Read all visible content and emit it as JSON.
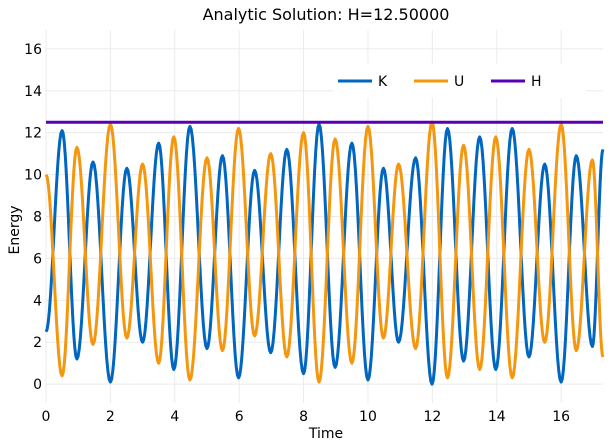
{
  "chart_data": {
    "type": "line",
    "title": "Analytic Solution: H=12.50000",
    "xlabel": "Time",
    "ylabel": "Energy",
    "xlim": [
      0,
      17.3
    ],
    "ylim": [
      -0.9,
      16.9
    ],
    "xticks": [
      0,
      2,
      4,
      6,
      8,
      10,
      12,
      14,
      16
    ],
    "yticks": [
      0,
      2,
      4,
      6,
      8,
      10,
      12,
      14,
      16
    ],
    "grid": true,
    "legend_position": "top-right",
    "series": [
      {
        "name": "K",
        "color": "#0066c0",
        "x": [
          0.0,
          0.5,
          0.96,
          1.46,
          2.0,
          2.51,
          3.0,
          3.5,
          3.97,
          4.47,
          5.0,
          5.48,
          5.98,
          6.48,
          6.98,
          7.48,
          8.0,
          8.48,
          8.98,
          9.5,
          10.0,
          10.48,
          10.95,
          11.48,
          11.99,
          12.47,
          12.97,
          13.47,
          13.97,
          14.48,
          15.0,
          15.49,
          16.0,
          16.47,
          16.97,
          17.3
        ],
        "y": [
          2.5,
          12.1,
          1.2,
          10.6,
          0.1,
          10.3,
          2.0,
          11.5,
          0.7,
          12.3,
          1.7,
          10.9,
          0.3,
          10.2,
          1.5,
          11.2,
          0.5,
          12.4,
          0.8,
          11.5,
          0.2,
          10.3,
          2.0,
          10.8,
          0.0,
          12.2,
          1.1,
          11.8,
          0.7,
          12.2,
          1.3,
          10.5,
          0.1,
          10.9,
          1.8,
          11.2
        ]
      },
      {
        "name": "U",
        "color": "#f5960f",
        "x": [
          0.0,
          0.5,
          0.96,
          1.46,
          2.0,
          2.51,
          3.0,
          3.5,
          3.97,
          4.47,
          5.0,
          5.48,
          5.98,
          6.48,
          6.98,
          7.48,
          8.0,
          8.48,
          8.98,
          9.5,
          10.0,
          10.48,
          10.95,
          11.48,
          11.99,
          12.47,
          12.97,
          13.47,
          13.97,
          14.48,
          15.0,
          15.49,
          16.0,
          16.47,
          16.97,
          17.3
        ],
        "y": [
          10.0,
          0.4,
          11.3,
          1.9,
          12.4,
          2.2,
          10.5,
          1.0,
          11.8,
          0.2,
          10.8,
          1.6,
          12.2,
          2.3,
          11.0,
          1.3,
          12.0,
          0.1,
          11.7,
          1.0,
          12.3,
          2.2,
          10.5,
          1.7,
          12.5,
          0.3,
          11.4,
          0.7,
          11.8,
          0.3,
          11.2,
          2.0,
          12.4,
          1.6,
          10.7,
          1.3
        ]
      },
      {
        "name": "H",
        "color": "#5a00b4",
        "x": [
          0,
          17.3
        ],
        "y": [
          12.5,
          12.5
        ]
      }
    ]
  }
}
